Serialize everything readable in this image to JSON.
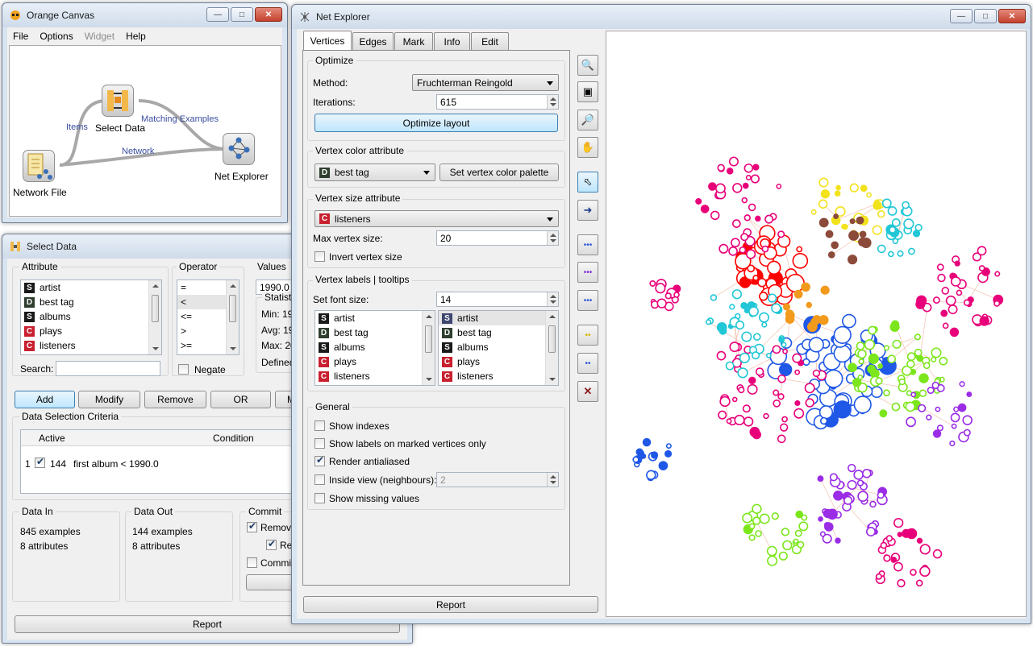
{
  "colors": {
    "accent": "#3c7fb1",
    "titlebar": "#d9e4f1",
    "close": "#c4412d",
    "link_text": "#3a4da0"
  },
  "orange_canvas": {
    "title": "Orange Canvas",
    "menu": [
      "File",
      "Options",
      "Widget",
      "Help"
    ],
    "nodes": {
      "select_data": "Select Data",
      "network_file": "Network File",
      "net_explorer": "Net Explorer"
    },
    "links": {
      "items": "Items",
      "matching": "Matching Examples",
      "network": "Network"
    }
  },
  "select_data": {
    "title": "Select Data",
    "attribute_header": "Attribute",
    "operator_header": "Operator",
    "values_header": "Values",
    "attributes": [
      {
        "type": "S",
        "name": "artist"
      },
      {
        "type": "D",
        "name": "best tag"
      },
      {
        "type": "S",
        "name": "albums"
      },
      {
        "type": "C",
        "name": "plays"
      },
      {
        "type": "C",
        "name": "listeners"
      }
    ],
    "operators": [
      "=",
      "<",
      "<=",
      ">",
      ">="
    ],
    "value": "1990.0",
    "statistics_label": "Statisti",
    "stats": [
      "Min: 19",
      "Avg: 19",
      "Max: 20",
      "Defined"
    ],
    "search_label": "Search:",
    "negate_label": "Negate",
    "buttons": {
      "add": "Add",
      "modify": "Modify",
      "remove": "Remove",
      "or": "OR",
      "more": "M"
    },
    "criteria_title": "Data Selection Criteria",
    "criteria_cols": {
      "active": "Active",
      "condition": "Condition"
    },
    "criteria_row": {
      "index": "1",
      "count": "144",
      "text": "first album  < 1990.0"
    },
    "data_in": {
      "title": "Data In",
      "examples": "845 examples",
      "attributes": "8 attributes"
    },
    "data_out": {
      "title": "Data Out",
      "examples": "144 examples",
      "attributes": "8 attributes"
    },
    "commit": {
      "title": "Commit",
      "remove": "Remove",
      "re": "Re",
      "commit": "Commit"
    },
    "report": "Report"
  },
  "net_explorer": {
    "title": "Net Explorer",
    "tabs": [
      "Vertices",
      "Edges",
      "Mark",
      "Info",
      "Edit"
    ],
    "optimize": {
      "title": "Optimize",
      "method_label": "Method:",
      "method": "Fruchterman Reingold",
      "iterations_label": "Iterations:",
      "iterations": "615",
      "button": "Optimize layout"
    },
    "color": {
      "title": "Vertex color attribute",
      "value": "best tag",
      "value_type": "D",
      "palette_button": "Set vertex color palette"
    },
    "size": {
      "title": "Vertex size attribute",
      "value": "listeners",
      "value_type": "C",
      "max_label": "Max vertex size:",
      "max": "20",
      "invert_label": "Invert vertex size"
    },
    "labels": {
      "title": "Vertex labels | tooltips",
      "font_label": "Set font size:",
      "font_size": "14",
      "left": [
        {
          "type": "S",
          "name": "artist"
        },
        {
          "type": "D",
          "name": "best tag"
        },
        {
          "type": "S",
          "name": "albums"
        },
        {
          "type": "C",
          "name": "plays"
        },
        {
          "type": "C",
          "name": "listeners"
        }
      ],
      "right": [
        {
          "type": "S",
          "name": "artist"
        },
        {
          "type": "D",
          "name": "best tag"
        },
        {
          "type": "S",
          "name": "albums"
        },
        {
          "type": "C",
          "name": "plays"
        },
        {
          "type": "C",
          "name": "listeners"
        }
      ]
    },
    "general": {
      "title": "General",
      "show_indexes": "Show indexes",
      "show_labels_marked": "Show labels on marked vertices only",
      "render_antialiased": "Render antialiased",
      "inside_view": "Inside view (neighbours):",
      "inside_view_value": "2",
      "show_missing": "Show missing values"
    },
    "report": "Report",
    "tools": [
      "zoom-icon",
      "zoom-extent-icon",
      "zoom-selection-icon",
      "pan-hand-icon",
      "select-arrow-icon",
      "send-marked-icon",
      "select-neighbours-icon",
      "select-marked-icon",
      "select-all-icon",
      "mark-yellow-icon",
      "mark-blue-icon",
      "clear-selection-icon"
    ],
    "graph_colors": [
      "#ff0000",
      "#e8007a",
      "#1f57e6",
      "#21c7d6",
      "#7ce61c",
      "#9a2ce6",
      "#f29a1c",
      "#f2e21c",
      "#8c4a3a"
    ]
  }
}
